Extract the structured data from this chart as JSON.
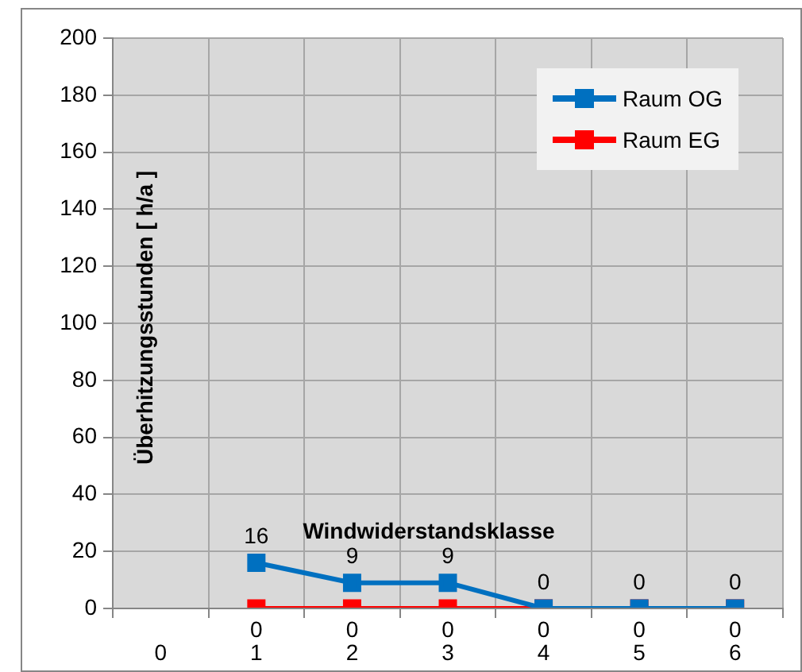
{
  "chart_data": {
    "type": "line",
    "xlabel": "Windwiderstandsklasse",
    "ylabel": "Überhitzungsstunden [ h/a ]",
    "categories": [
      "0",
      "1",
      "2",
      "3",
      "4",
      "5",
      "6"
    ],
    "series": [
      {
        "name": "Raum OG",
        "color": "#0070c0",
        "values": [
          null,
          16,
          9,
          9,
          0,
          0,
          0
        ],
        "value_labels": [
          null,
          "16",
          "9",
          "9",
          "0",
          "0",
          "0"
        ]
      },
      {
        "name": "Raum EG",
        "color": "#ff0000",
        "values": [
          null,
          0,
          0,
          0,
          0,
          0,
          0
        ],
        "value_labels": [
          null,
          "0",
          "0",
          "0",
          "0",
          "0",
          "0"
        ]
      }
    ],
    "ylim": [
      0,
      200
    ],
    "yticks": [
      0,
      20,
      40,
      60,
      80,
      100,
      120,
      140,
      160,
      180,
      200
    ],
    "grid": true,
    "legend": "top right",
    "marker": "square",
    "line_style": "solid"
  }
}
